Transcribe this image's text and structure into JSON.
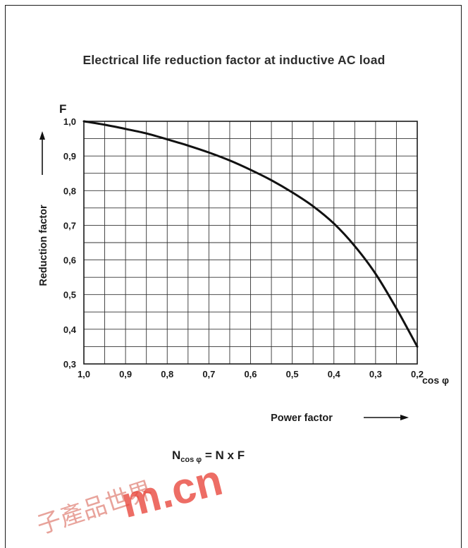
{
  "chart_data": {
    "type": "line",
    "title": "Electrical life reduction factor at inductive AC load",
    "y_symbol": "F",
    "ylabel": "Reduction factor",
    "xlabel": "Power factor",
    "x_symbol": "cos φ",
    "xlim": [
      1.0,
      0.2
    ],
    "ylim": [
      0.3,
      1.0
    ],
    "x_ticks": [
      "1,0",
      "0,9",
      "0,8",
      "0,7",
      "0,6",
      "0,5",
      "0,4",
      "0,3",
      "0,2"
    ],
    "y_ticks": [
      "0,3",
      "0,4",
      "0,5",
      "0,6",
      "0,7",
      "0,8",
      "0,9",
      "1,0"
    ],
    "grid": true,
    "x_reversed": true,
    "series": [
      {
        "x": [
          1.0,
          0.95,
          0.9,
          0.85,
          0.8,
          0.75,
          0.7,
          0.65,
          0.6,
          0.55,
          0.5,
          0.45,
          0.4,
          0.35,
          0.3,
          0.25,
          0.2
        ],
        "y": [
          1.0,
          0.99,
          0.978,
          0.965,
          0.948,
          0.93,
          0.91,
          0.887,
          0.86,
          0.83,
          0.795,
          0.755,
          0.705,
          0.64,
          0.56,
          0.46,
          0.35
        ]
      }
    ]
  },
  "formula": {
    "base": "N",
    "sub": "cos φ",
    "rest": " = N x F"
  },
  "watermark": {
    "chars": "子產品世界",
    "text": "m.cn"
  }
}
